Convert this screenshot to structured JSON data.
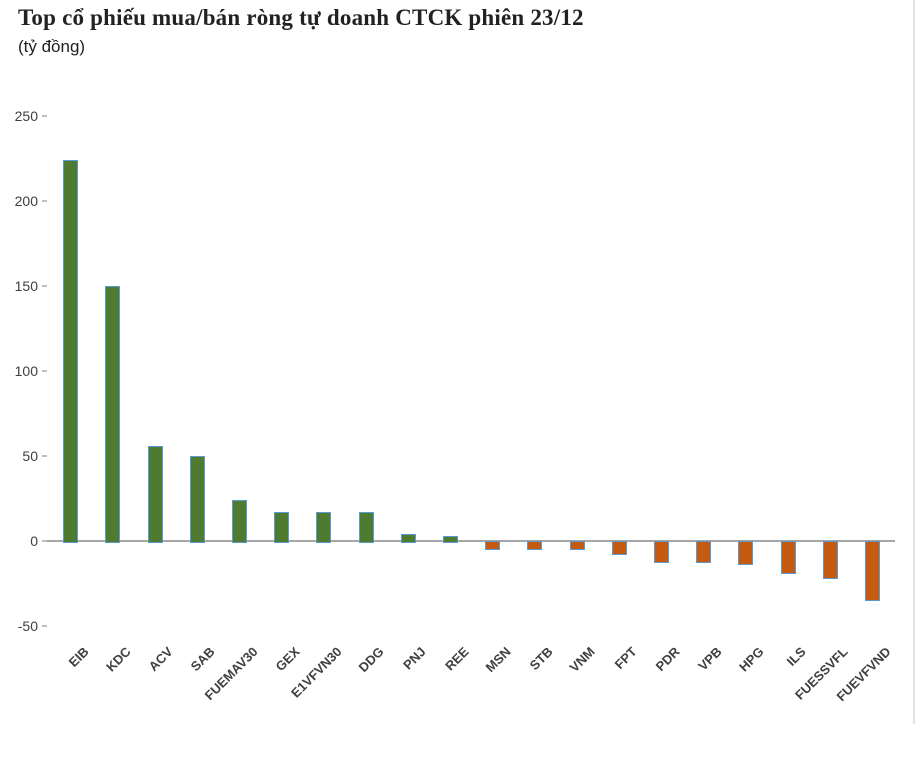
{
  "header": {
    "title": "Top cổ phiếu mua/bán ròng tự doanh CTCK phiên 23/12",
    "subtitle": "(tỷ đồng)"
  },
  "chart_data": {
    "type": "bar",
    "title": "Top cổ phiếu mua/bán ròng tự doanh CTCK phiên 23/12",
    "unit_label": "(tỷ đồng)",
    "categories": [
      "EIB",
      "KDC",
      "ACV",
      "SAB",
      "FUEMAV30",
      "GEX",
      "E1VFVN30",
      "DDG",
      "PNJ",
      "REE",
      "MSN",
      "STB",
      "VNM",
      "FPT",
      "PDR",
      "VPB",
      "HPG",
      "ILS",
      "FUESSVFL",
      "FUEVFVND"
    ],
    "values": [
      224,
      150,
      56,
      50,
      24,
      17,
      17,
      17,
      4,
      3,
      -4,
      -4,
      -4,
      -7,
      -12,
      -12,
      -13,
      -18,
      -21,
      -34
    ],
    "xlabel": "",
    "ylabel": "",
    "yticks": [
      250,
      200,
      150,
      100,
      50,
      0,
      -50
    ],
    "ylim": [
      -50,
      250
    ],
    "grid": false,
    "legend": false,
    "colors": {
      "positive_bar": "#4e7b2f",
      "negative_bar": "#c55a11",
      "bar_border": "#5b9bd5",
      "axis_line": "#a6a6a6",
      "tick_text": "#404040",
      "title_text": "#222222"
    }
  }
}
